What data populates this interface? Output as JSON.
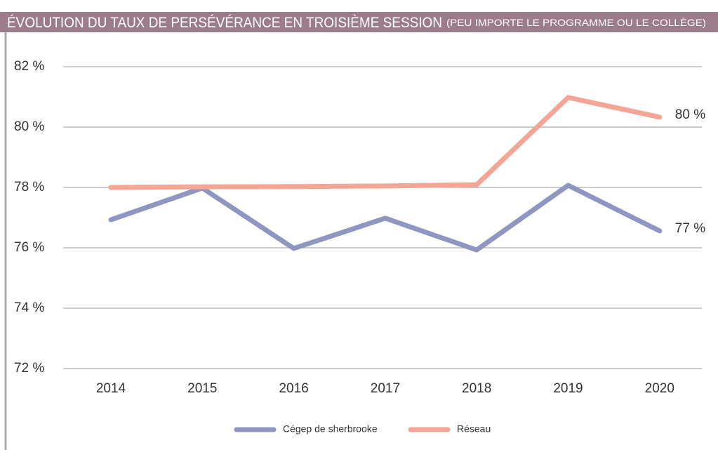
{
  "chart_data": {
    "type": "line",
    "title": "ÉVOLUTION DU TAUX DE PERSÉVÉRANCE EN TROISIÈME SESSION",
    "subtitle": "(PEU IMPORTE LE PROGRAMME OU LE COLLÈGE)",
    "categories": [
      "2014",
      "2015",
      "2016",
      "2017",
      "2018",
      "2019",
      "2020"
    ],
    "series": [
      {
        "name": "Cégep de sherbrooke",
        "color": "#8f96c2",
        "values": [
          76.93,
          77.98,
          75.98,
          76.98,
          75.93,
          78.07,
          76.56
        ],
        "value_labels": [
          null,
          null,
          null,
          null,
          null,
          null,
          "77 %"
        ]
      },
      {
        "name": "Réseau",
        "color": "#f4a594",
        "values": [
          78.0,
          78.02,
          78.03,
          78.05,
          78.09,
          80.98,
          80.33
        ],
        "value_labels": [
          null,
          null,
          null,
          null,
          null,
          null,
          "80 %"
        ]
      }
    ],
    "ylim": [
      72,
      82
    ],
    "yticks": [
      {
        "value": 72,
        "label": "72 %"
      },
      {
        "value": 74,
        "label": "74 %"
      },
      {
        "value": 76,
        "label": "76 %"
      },
      {
        "value": 78,
        "label": "78 %"
      },
      {
        "value": 80,
        "label": "80 %"
      },
      {
        "value": 82,
        "label": "82 %"
      }
    ],
    "grid": true,
    "legend": "bottom"
  }
}
